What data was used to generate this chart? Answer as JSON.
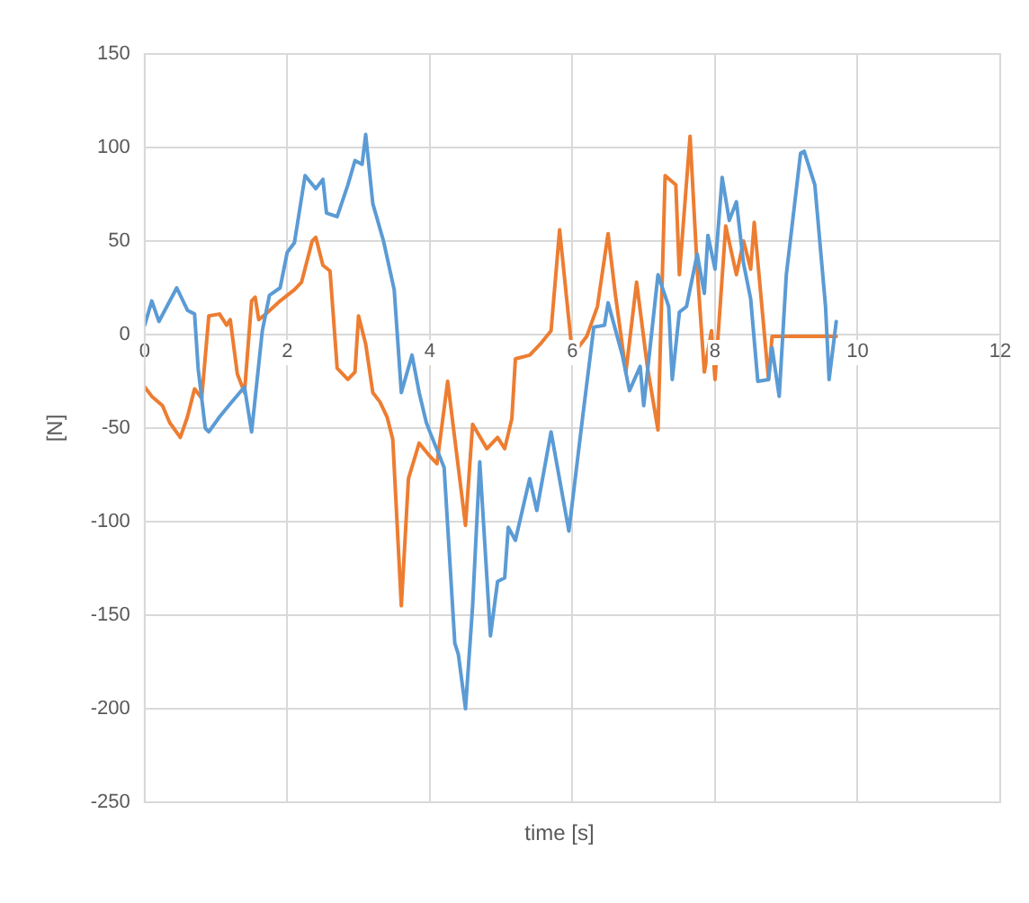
{
  "chart_data": {
    "type": "line",
    "xlabel": "time [s]",
    "ylabel": "[N]",
    "xlim": [
      0,
      12
    ],
    "xticks": [
      0,
      2,
      4,
      6,
      8,
      10,
      12
    ],
    "ylim": [
      -250,
      150
    ],
    "yticks": [
      -250,
      -200,
      -150,
      -100,
      -50,
      0,
      50,
      100,
      150
    ],
    "grid": true,
    "legend": false,
    "marker": "none",
    "line_style": "solid",
    "series": [
      {
        "color": "#5b9bd5",
        "x": [
          0,
          0.1,
          0.2,
          0.45,
          0.6,
          0.7,
          0.75,
          0.85,
          0.9,
          1.05,
          1.2,
          1.4,
          1.5,
          1.65,
          1.75,
          1.9,
          2.0,
          2.1,
          2.25,
          2.4,
          2.5,
          2.55,
          2.7,
          2.85,
          2.95,
          3.05,
          3.1,
          3.2,
          3.35,
          3.5,
          3.6,
          3.75,
          3.85,
          3.95,
          4.0,
          4.2,
          4.35,
          4.4,
          4.5,
          4.6,
          4.7,
          4.85,
          4.95,
          5.05,
          5.1,
          5.2,
          5.4,
          5.5,
          5.7,
          5.95,
          6.15,
          6.3,
          6.45,
          6.5,
          6.7,
          6.8,
          6.95,
          7.0,
          7.2,
          7.35,
          7.4,
          7.5,
          7.6,
          7.75,
          7.85,
          7.9,
          8.0,
          8.1,
          8.2,
          8.3,
          8.4,
          8.5,
          8.6,
          8.75,
          8.8,
          8.9,
          9.0,
          9.2,
          9.25,
          9.4,
          9.55,
          9.6,
          9.7
        ],
        "values": [
          5,
          18,
          7,
          25,
          13,
          11,
          -18,
          -50,
          -52,
          -44,
          -37,
          -28,
          -52,
          2,
          21,
          25,
          44,
          49,
          85,
          78,
          83,
          65,
          63,
          80,
          93,
          91,
          107,
          70,
          50,
          24,
          -31,
          -11,
          -31,
          -47,
          -52,
          -71,
          -165,
          -171,
          -200,
          -145,
          -68,
          -161,
          -132,
          -130,
          -103,
          -110,
          -77,
          -94,
          -52,
          -105,
          -42,
          4,
          5,
          17,
          -11,
          -30,
          -17,
          -38,
          32,
          15,
          -24,
          12,
          15,
          43,
          22,
          53,
          35,
          84,
          61,
          71,
          38,
          19,
          -25,
          -24,
          -7,
          -33,
          32,
          97,
          98,
          80,
          15,
          -24,
          7
        ]
      },
      {
        "color": "#ed7d31",
        "x": [
          0,
          0.1,
          0.25,
          0.35,
          0.5,
          0.6,
          0.7,
          0.8,
          0.9,
          1.05,
          1.15,
          1.2,
          1.3,
          1.4,
          1.5,
          1.55,
          1.6,
          1.7,
          1.9,
          2.1,
          2.2,
          2.35,
          2.4,
          2.5,
          2.6,
          2.7,
          2.85,
          2.95,
          3.0,
          3.1,
          3.2,
          3.3,
          3.4,
          3.48,
          3.6,
          3.7,
          3.85,
          4.0,
          4.1,
          4.25,
          4.5,
          4.6,
          4.8,
          4.95,
          5.05,
          5.15,
          5.2,
          5.4,
          5.55,
          5.7,
          5.82,
          6.0,
          6.2,
          6.35,
          6.5,
          6.6,
          6.75,
          6.9,
          7.05,
          7.2,
          7.3,
          7.45,
          7.5,
          7.65,
          7.75,
          7.85,
          7.95,
          8.0,
          8.15,
          8.3,
          8.4,
          8.5,
          8.55,
          8.75,
          8.8,
          8.9,
          9.7
        ],
        "values": [
          -28,
          -33,
          -38,
          -47,
          -55,
          -44,
          -29,
          -34,
          10,
          11,
          5,
          8,
          -21,
          -31,
          18,
          20,
          8,
          11,
          18,
          24,
          28,
          50,
          52,
          37,
          34,
          -18,
          -24,
          -20,
          10,
          -5,
          -31,
          -36,
          -44,
          -56,
          -145,
          -77,
          -58,
          -65,
          -69,
          -25,
          -102,
          -48,
          -61,
          -55,
          -61,
          -45,
          -13,
          -11,
          -5,
          2,
          56,
          -11,
          -1,
          15,
          54,
          22,
          -20,
          28,
          -17,
          -51,
          85,
          80,
          32,
          106,
          35,
          -20,
          2,
          -24,
          58,
          32,
          50,
          35,
          60,
          -24,
          -1,
          -1,
          -1
        ]
      }
    ]
  }
}
